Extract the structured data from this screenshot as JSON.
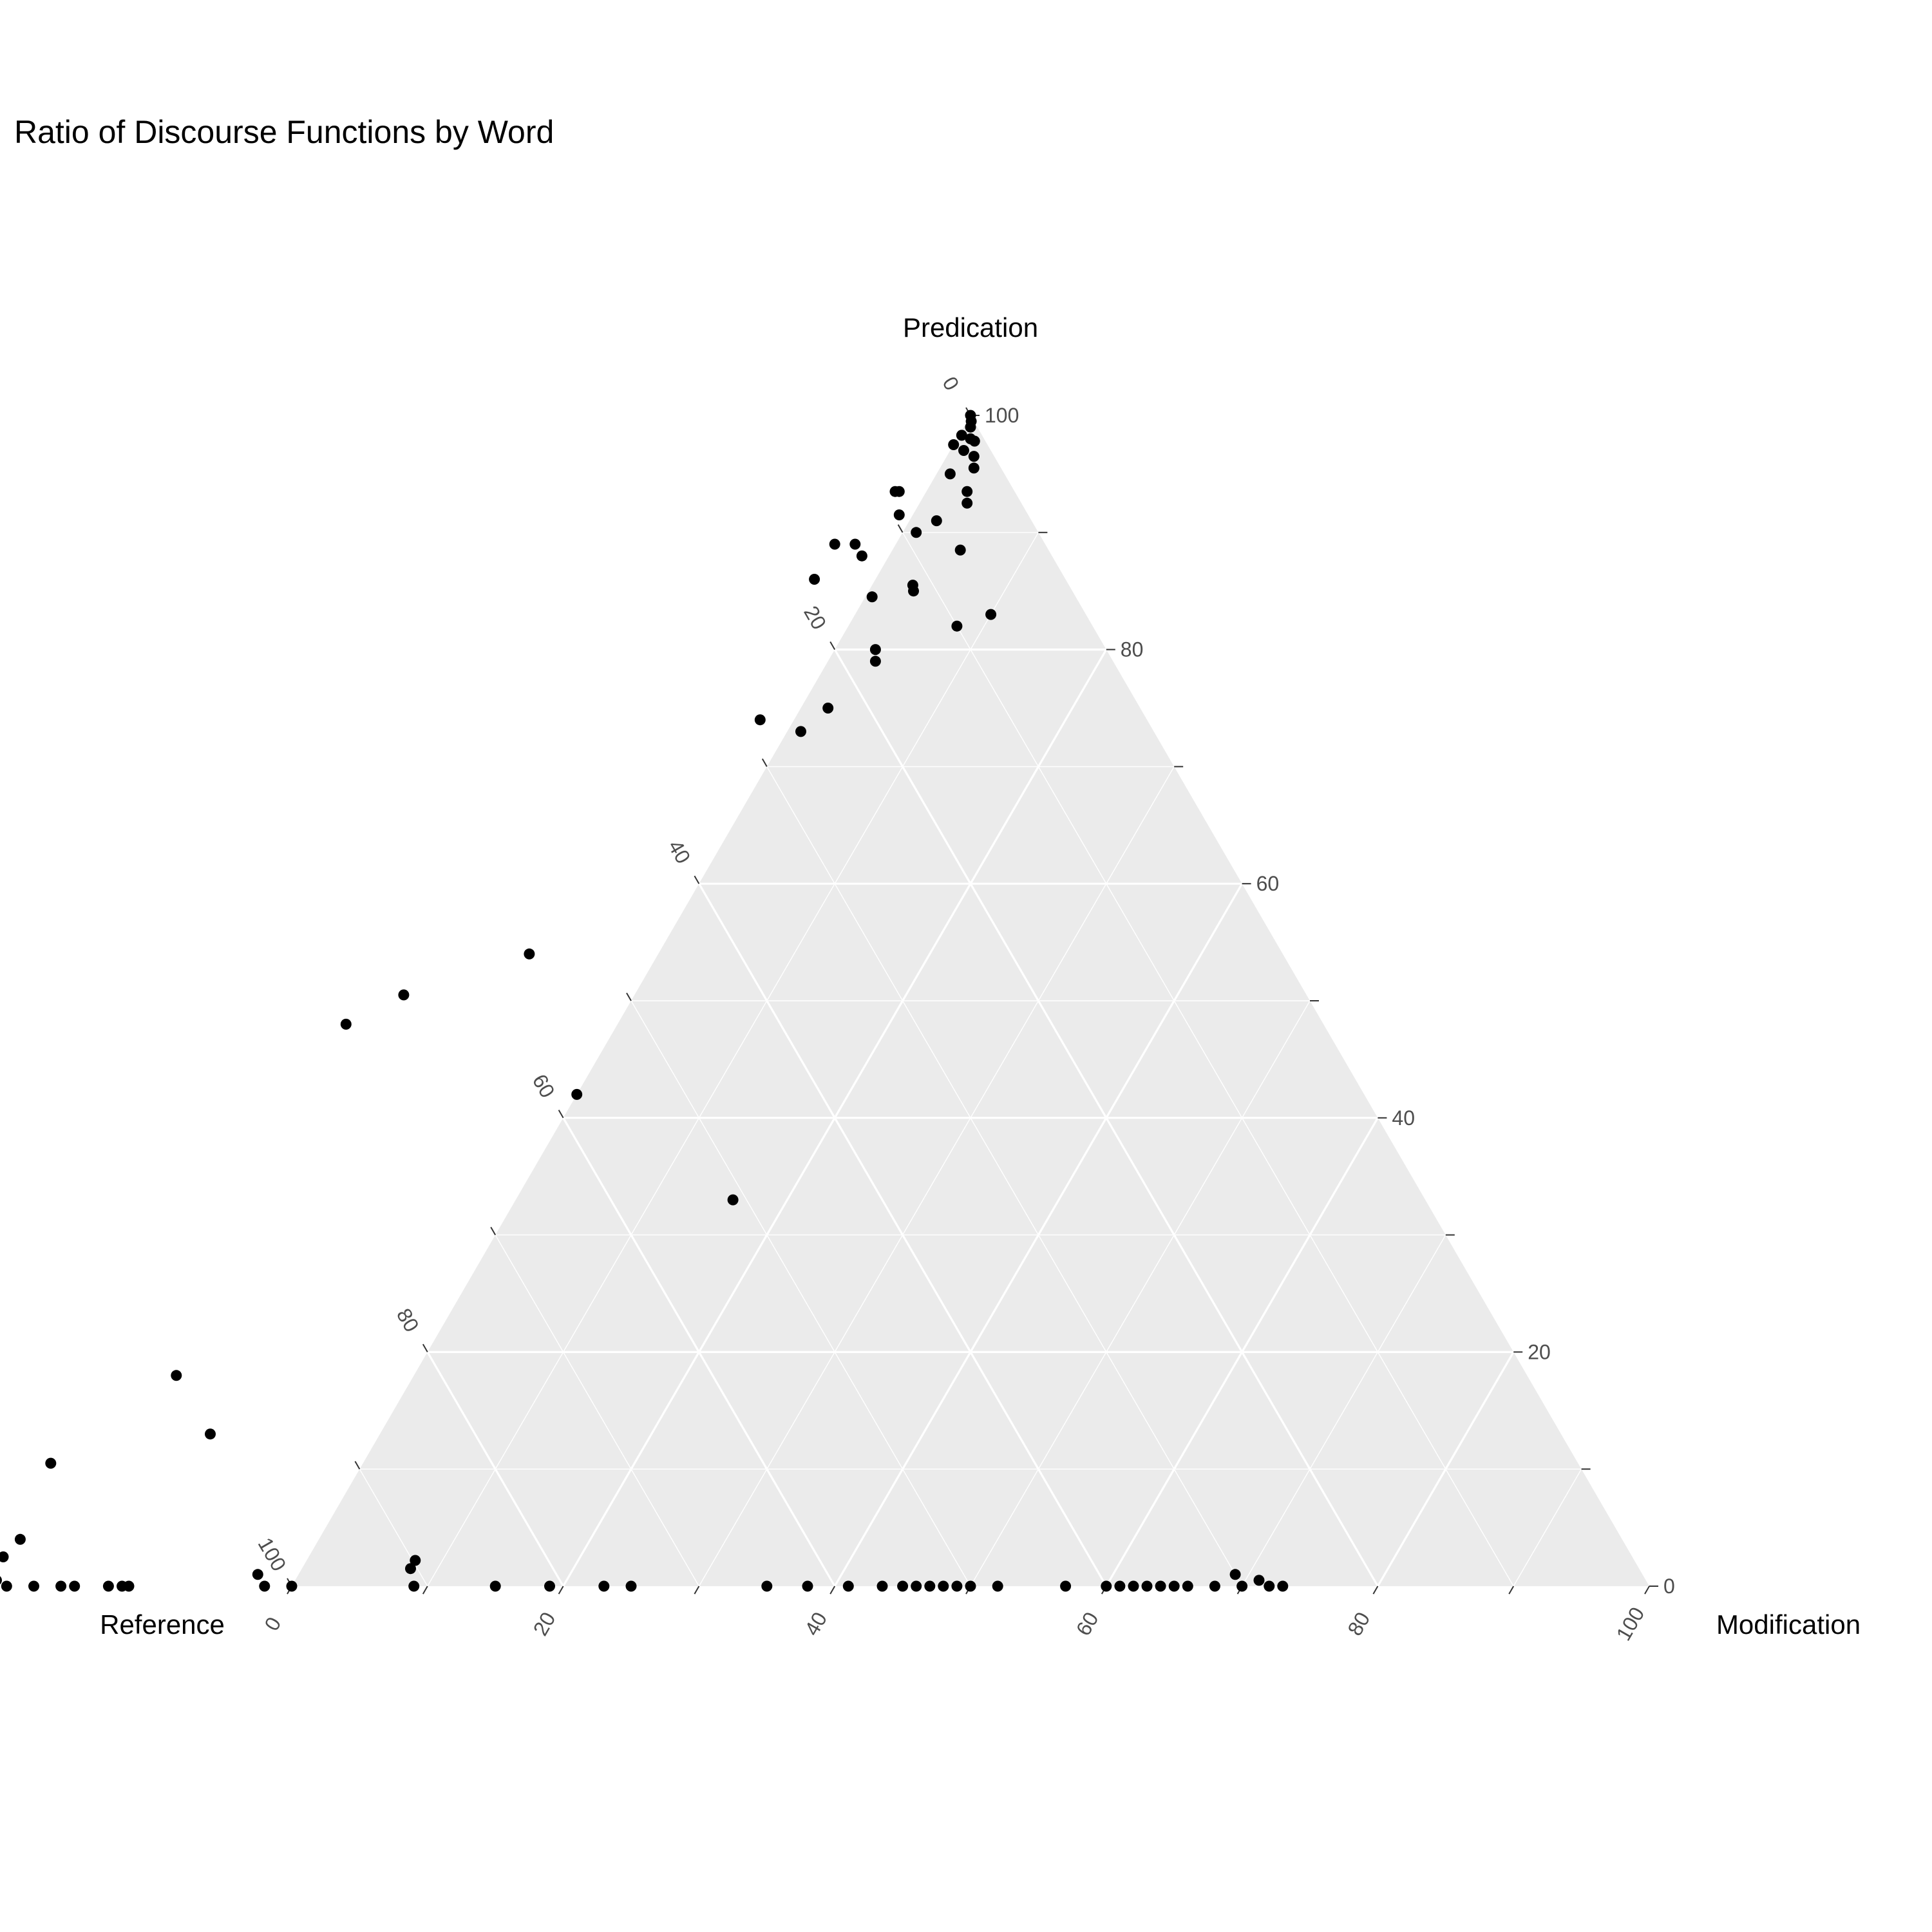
{
  "chart_data": {
    "type": "scatter",
    "subtype": "ternary",
    "title": "Ratio of Discourse Functions by Word",
    "axes": {
      "top": "Predication",
      "left": "Reference",
      "right": "Modification"
    },
    "ticks": [
      "0",
      "20",
      "40",
      "60",
      "80",
      "100"
    ],
    "grid": true,
    "panel_color": "#ebebeb",
    "grid_color": "#ffffff",
    "point_color": "#000000",
    "legend": "none",
    "points_order": [
      "predication",
      "modification"
    ],
    "points": [
      [
        100,
        0
      ],
      [
        99.5,
        0.3
      ],
      [
        99,
        0.5
      ],
      [
        98,
        1
      ],
      [
        98.3,
        0.2
      ],
      [
        97.8,
        1.4
      ],
      [
        97.5,
        0
      ],
      [
        97,
        1
      ],
      [
        96.5,
        2
      ],
      [
        95.5,
        2.5
      ],
      [
        95,
        1
      ],
      [
        93.5,
        3
      ],
      [
        92.5,
        3.5
      ],
      [
        93.5,
        -2
      ],
      [
        93.5,
        -2.3
      ],
      [
        91.5,
        -1
      ],
      [
        91,
        2
      ],
      [
        90,
        1
      ],
      [
        89,
        -3
      ],
      [
        88.5,
        5
      ],
      [
        89,
        -4.5
      ],
      [
        88,
        -2
      ],
      [
        86,
        -4.5
      ],
      [
        85.5,
        3
      ],
      [
        85,
        3.3
      ],
      [
        84.5,
        0.5
      ],
      [
        83,
        10
      ],
      [
        82,
        8
      ],
      [
        80,
        3
      ],
      [
        79,
        3.5
      ],
      [
        75,
        2
      ],
      [
        74,
        -2.5
      ],
      [
        73,
        1
      ],
      [
        54,
        -9.5
      ],
      [
        50.5,
        -17
      ],
      [
        48,
        -20
      ],
      [
        42,
        0
      ],
      [
        33,
        16
      ],
      [
        18,
        -17.5
      ],
      [
        13,
        -12.5
      ],
      [
        10.5,
        -23
      ],
      [
        4,
        -22
      ],
      [
        2.5,
        -22.5
      ],
      [
        1,
        -24.5
      ],
      [
        0.5,
        -24.5
      ],
      [
        0.5,
        -23.5
      ],
      [
        0.5,
        -22
      ],
      [
        0,
        -24
      ],
      [
        0,
        -24.3
      ],
      [
        0,
        -24.6
      ],
      [
        0,
        -23.5
      ],
      [
        0,
        -23
      ],
      [
        0,
        -22
      ],
      [
        0,
        -21
      ],
      [
        0,
        -19
      ],
      [
        0,
        -17
      ],
      [
        0,
        -16
      ],
      [
        0,
        -13.5
      ],
      [
        0,
        -12.5
      ],
      [
        0,
        -12
      ],
      [
        1,
        -3
      ],
      [
        0,
        -2
      ],
      [
        0,
        0
      ],
      [
        2.2,
        8
      ],
      [
        1.5,
        8
      ],
      [
        0,
        9
      ],
      [
        0,
        15
      ],
      [
        0,
        19
      ],
      [
        0,
        23
      ],
      [
        0,
        25
      ],
      [
        0,
        35
      ],
      [
        0,
        38
      ],
      [
        0,
        41
      ],
      [
        0,
        43.5
      ],
      [
        0,
        45
      ],
      [
        0,
        46
      ],
      [
        0,
        47
      ],
      [
        0,
        48
      ],
      [
        0,
        49
      ],
      [
        0,
        50
      ],
      [
        0,
        52
      ],
      [
        0,
        57
      ],
      [
        0,
        60
      ],
      [
        0,
        61
      ],
      [
        0,
        62
      ],
      [
        0,
        63
      ],
      [
        0,
        64
      ],
      [
        0,
        65
      ],
      [
        0,
        66
      ],
      [
        0,
        68
      ],
      [
        1,
        69
      ],
      [
        0,
        70
      ],
      [
        0.5,
        71
      ],
      [
        0,
        72
      ],
      [
        0,
        73
      ]
    ]
  }
}
